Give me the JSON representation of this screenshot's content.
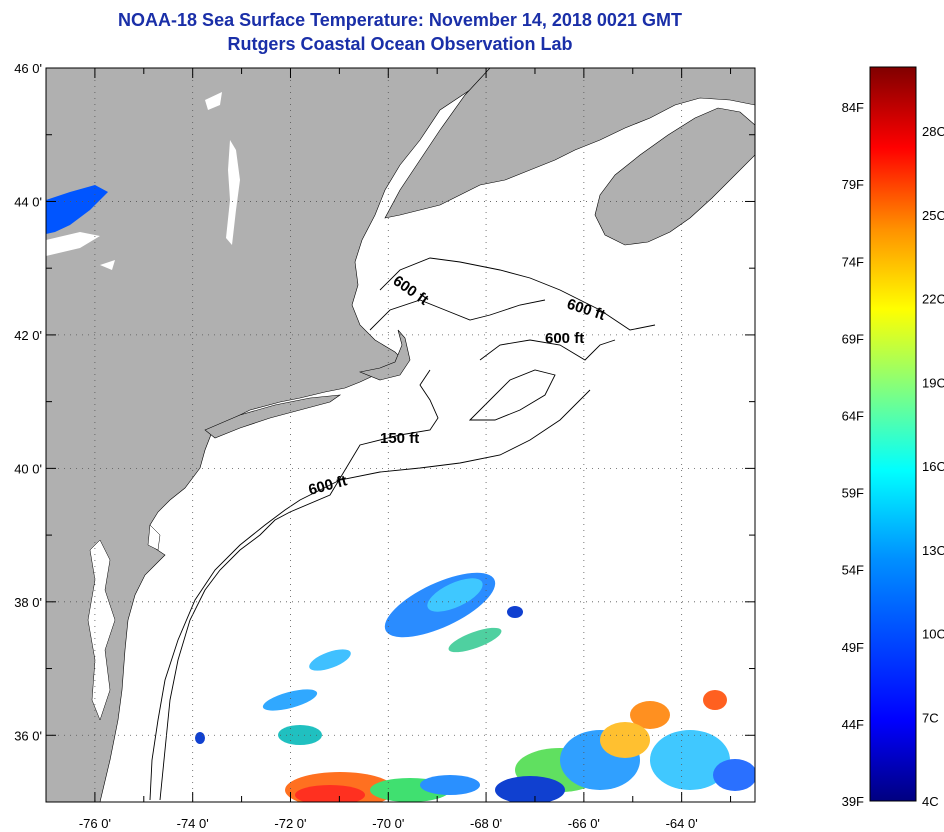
{
  "title": "NOAA-18 Sea Surface Temperature:  November 14, 2018 0021 GMT",
  "subtitle": "Rutgers Coastal Ocean Observation Lab",
  "map": {
    "lon_range": [
      -77,
      -62.5
    ],
    "lat_range": [
      35,
      46
    ],
    "lat_labels": [
      "46 0'",
      "44 0'",
      "42 0'",
      "40 0'",
      "38 0'",
      "36 0'"
    ],
    "lat_values": [
      46,
      44,
      42,
      40,
      38,
      36
    ],
    "lon_labels": [
      "-76 0'",
      "-74 0'",
      "-72 0'",
      "-70 0'",
      "-68 0'",
      "-66 0'",
      "-64 0'"
    ],
    "lon_values": [
      -76,
      -74,
      -72,
      -70,
      -68,
      -66,
      -64
    ],
    "land_color": "#b0b0b0",
    "grid": "dotted",
    "contour_labels": [
      {
        "text": "600 ft"
      },
      {
        "text": "600 ft"
      },
      {
        "text": "600 ft"
      },
      {
        "text": "150 ft"
      },
      {
        "text": "600 ft"
      }
    ]
  },
  "colorbar": {
    "fahrenheit_labels": [
      "84F",
      "79F",
      "74F",
      "69F",
      "64F",
      "59F",
      "54F",
      "49F",
      "44F",
      "39F"
    ],
    "celsius_labels": [
      "28C",
      "25C",
      "22C",
      "19C",
      "16C",
      "13C",
      "10C",
      "7C",
      "4C"
    ],
    "colors": [
      "#000080",
      "#0000ff",
      "#0080ff",
      "#00ffff",
      "#80ff80",
      "#ffff00",
      "#ff8000",
      "#ff0000",
      "#800000"
    ]
  }
}
